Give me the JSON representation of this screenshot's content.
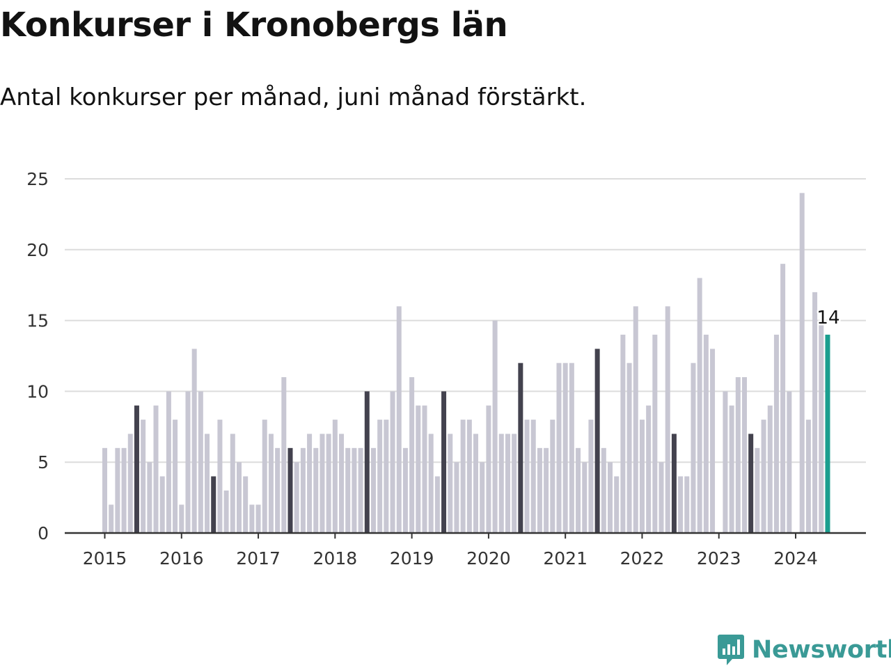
{
  "title": "Konkurser i Kronobergs län",
  "subtitle": "Antal konkurser per månad, juni månad förstärkt.",
  "brand": {
    "name": "Newsworthy",
    "color": "#3a9a96"
  },
  "colors": {
    "default_bar": "#c8c7d3",
    "june_bar": "#43424e",
    "latest_bar": "#1a9e8f",
    "grid": "#dcdcdc",
    "axis": "#333333"
  },
  "chart_data": {
    "type": "bar",
    "title": "Konkurser i Kronobergs län",
    "subtitle": "Antal konkurser per månad, juni månad förstärkt.",
    "xlabel": "",
    "ylabel": "",
    "ylim": [
      0,
      25
    ],
    "yticks": [
      0,
      5,
      10,
      15,
      20,
      25
    ],
    "xtick_labels": [
      "2015",
      "2016",
      "2017",
      "2018",
      "2019",
      "2020",
      "2021",
      "2022",
      "2023",
      "2024"
    ],
    "grid": true,
    "start": "2015-01",
    "highlight": "june",
    "latest_label": "14",
    "values": [
      6,
      2,
      6,
      6,
      7,
      9,
      8,
      5,
      9,
      4,
      10,
      8,
      2,
      10,
      13,
      10,
      7,
      4,
      8,
      3,
      7,
      5,
      4,
      2,
      2,
      8,
      7,
      6,
      11,
      6,
      5,
      6,
      7,
      6,
      7,
      7,
      8,
      7,
      6,
      6,
      6,
      10,
      6,
      8,
      8,
      10,
      16,
      6,
      11,
      9,
      9,
      7,
      4,
      10,
      7,
      5,
      8,
      8,
      7,
      5,
      9,
      15,
      7,
      7,
      7,
      12,
      8,
      8,
      6,
      6,
      8,
      12,
      12,
      12,
      6,
      5,
      8,
      13,
      6,
      5,
      4,
      14,
      12,
      16,
      8,
      9,
      14,
      5,
      16,
      7,
      4,
      4,
      12,
      18,
      14,
      13,
      0,
      10,
      9,
      11,
      11,
      7,
      6,
      8,
      9,
      14,
      19,
      10,
      0,
      24,
      8,
      17,
      15,
      14
    ]
  }
}
